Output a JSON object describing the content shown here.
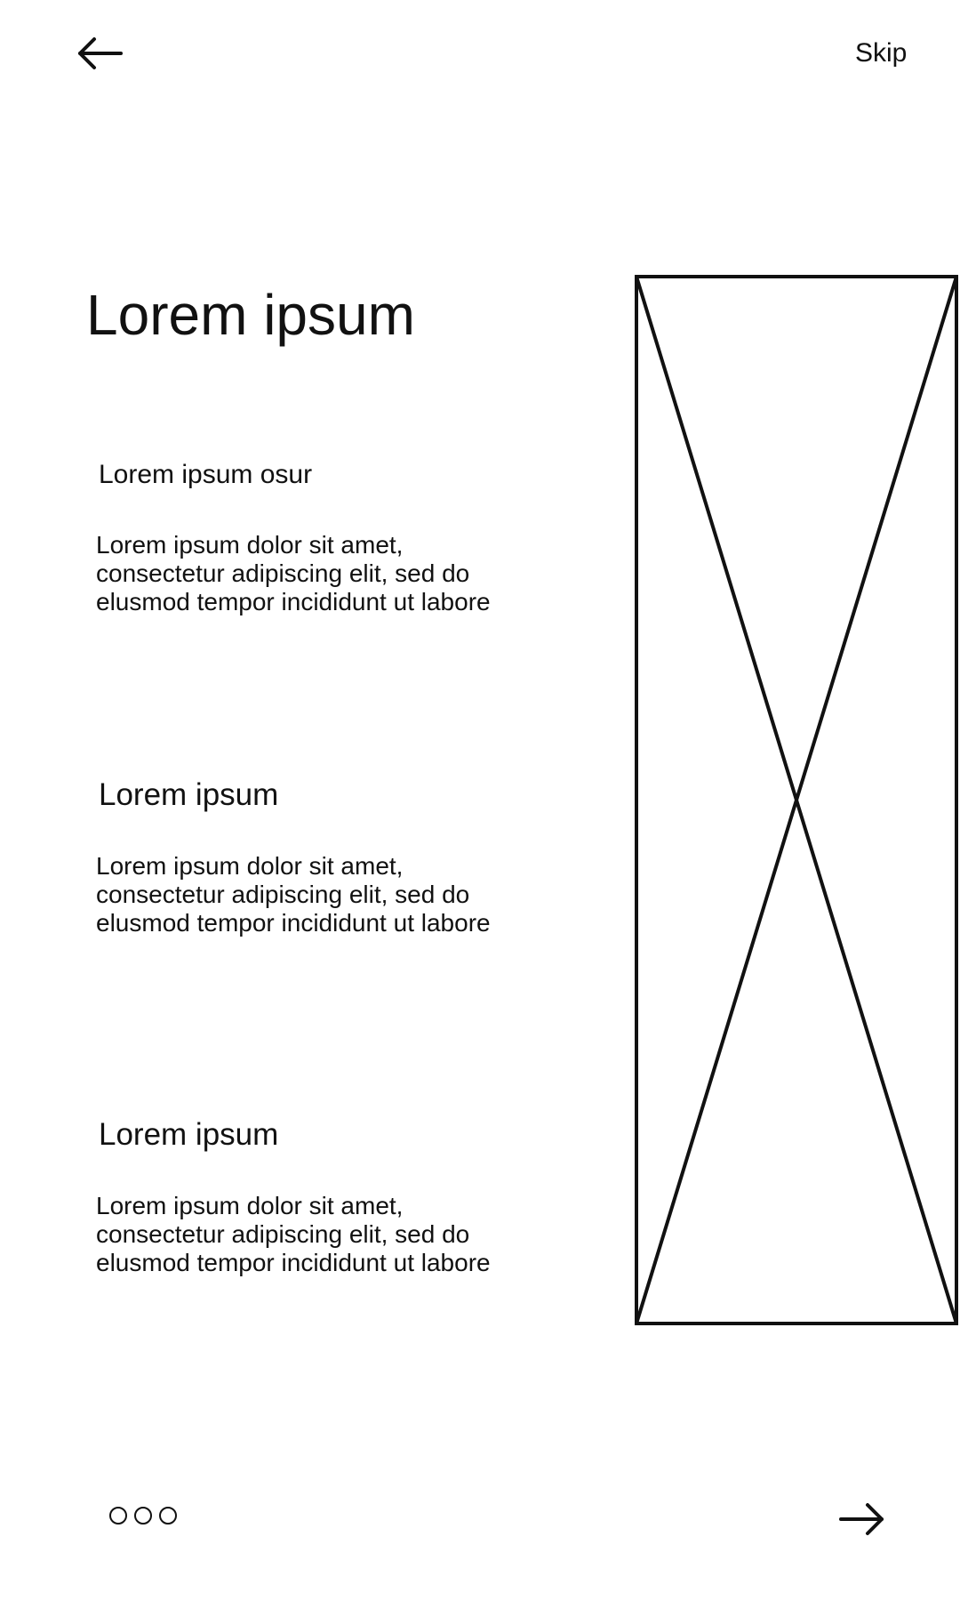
{
  "header": {
    "back_icon": "arrow-left-icon",
    "skip_label": "Skip"
  },
  "main": {
    "title": "Lorem ipsum",
    "sections": [
      {
        "heading": "Lorem ipsum osur",
        "body": "Lorem ipsum dolor sit amet,\nconsectetur adipiscing elit, sed do\nelusmod tempor incididunt ut labore"
      },
      {
        "heading": "Lorem ipsum",
        "body": "Lorem ipsum dolor sit amet,\nconsectetur adipiscing elit, sed do\nelusmod tempor incididunt ut labore"
      },
      {
        "heading": "Lorem ipsum",
        "body": "Lorem ipsum dolor sit amet,\nconsectetur adipiscing elit, sed do\nelusmod tempor incididunt ut labore"
      }
    ],
    "image_placeholder_icon": "image-placeholder-icon"
  },
  "footer": {
    "pagination_count": 3,
    "next_icon": "arrow-right-icon"
  },
  "colors": {
    "foreground": "#111111",
    "background": "#ffffff"
  }
}
